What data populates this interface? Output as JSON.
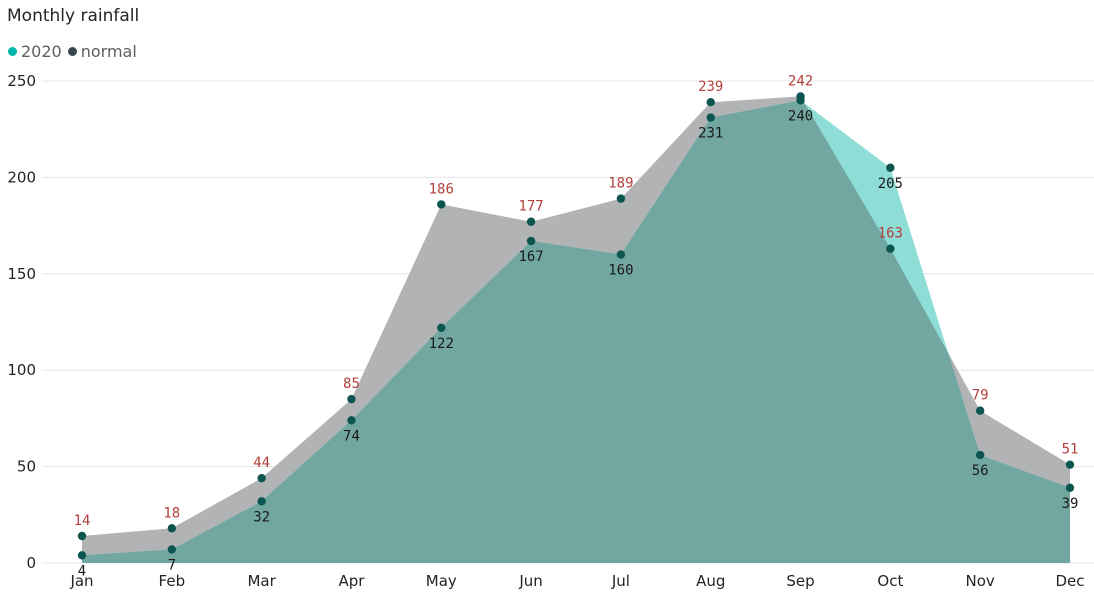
{
  "chart_data": {
    "type": "area",
    "title": "Monthly rainfall",
    "xlabel": "",
    "ylabel": "",
    "categories": [
      "Jan",
      "Feb",
      "Mar",
      "Apr",
      "May",
      "Jun",
      "Jul",
      "Aug",
      "Sep",
      "Oct",
      "Nov",
      "Dec"
    ],
    "series": [
      {
        "name": "2020",
        "color": "#01b8aa",
        "fill_color": "#8fddd7",
        "label_color": "#1a1a1a",
        "values": [
          4,
          7,
          32,
          74,
          122,
          167,
          160,
          231,
          240,
          205,
          56,
          39
        ]
      },
      {
        "name": "normal",
        "color": "#374649",
        "fill_color": "#b1b3b4",
        "label_color": "#b3403c",
        "values": [
          14,
          18,
          44,
          85,
          186,
          177,
          189,
          239,
          242,
          163,
          79,
          51
        ]
      }
    ],
    "ylim": [
      0,
      250
    ],
    "yticks": [
      0,
      50,
      100,
      150,
      200,
      250
    ],
    "grid": true,
    "legend_position": "top-left",
    "overlap_fill_color": "#72a7a1",
    "marker_color": "#0c5550"
  }
}
